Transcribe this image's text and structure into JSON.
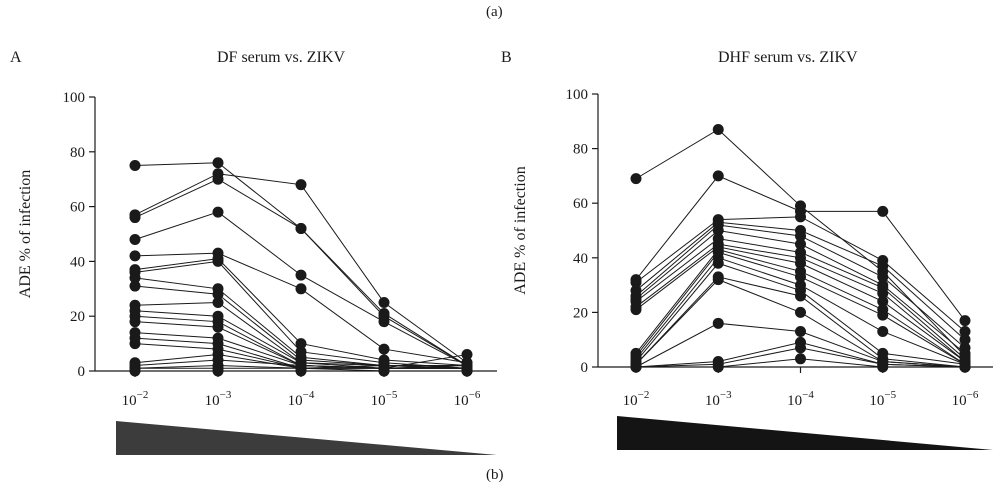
{
  "figure": {
    "top_label": "(a)",
    "bottom_label": "(b)"
  },
  "chart_data": [
    {
      "type": "line",
      "panel": "A",
      "title": "DF serum vs. ZIKV",
      "ylabel": "ADE % of infection",
      "ylim": [
        0,
        100
      ],
      "yticks": [
        0,
        20,
        40,
        60,
        80,
        100
      ],
      "categories": [
        "10^-2",
        "10^-3",
        "10^-4",
        "10^-5",
        "10^-6"
      ],
      "wedge_color": "#3c3c3c",
      "series": [
        {
          "values": [
            75,
            76,
            52,
            20,
            2
          ]
        },
        {
          "values": [
            57,
            72,
            68,
            25,
            3
          ]
        },
        {
          "values": [
            56,
            70,
            52,
            21,
            2
          ]
        },
        {
          "values": [
            48,
            58,
            35,
            18,
            2
          ]
        },
        {
          "values": [
            42,
            43,
            30,
            8,
            3
          ]
        },
        {
          "values": [
            37,
            41,
            10,
            4,
            2
          ]
        },
        {
          "values": [
            36,
            40,
            7,
            3,
            1
          ]
        },
        {
          "values": [
            34,
            30,
            5,
            2,
            1
          ]
        },
        {
          "values": [
            31,
            28,
            4,
            2,
            1
          ]
        },
        {
          "values": [
            24,
            25,
            3,
            2,
            2
          ]
        },
        {
          "values": [
            22,
            20,
            3,
            1,
            1
          ]
        },
        {
          "values": [
            20,
            18,
            2,
            1,
            1
          ]
        },
        {
          "values": [
            18,
            16,
            2,
            1,
            1
          ]
        },
        {
          "values": [
            14,
            12,
            2,
            1,
            6
          ]
        },
        {
          "values": [
            12,
            10,
            1,
            1,
            2
          ]
        },
        {
          "values": [
            10,
            8,
            1,
            1,
            1
          ]
        },
        {
          "values": [
            3,
            6,
            1,
            2,
            1
          ]
        },
        {
          "values": [
            2,
            4,
            2,
            1,
            1
          ]
        },
        {
          "values": [
            1,
            2,
            1,
            1,
            1
          ]
        },
        {
          "values": [
            1,
            1,
            1,
            0,
            0
          ]
        },
        {
          "values": [
            0,
            0,
            0,
            0,
            0
          ]
        }
      ]
    },
    {
      "type": "line",
      "panel": "B",
      "title": "DHF serum vs. ZIKV",
      "ylabel": "ADE % of infection",
      "ylim": [
        0,
        100
      ],
      "yticks": [
        0,
        20,
        40,
        60,
        80,
        100
      ],
      "categories": [
        "10^-2",
        "10^-3",
        "10^-4",
        "10^-5",
        "10^-6"
      ],
      "wedge_color": "#141414",
      "series": [
        {
          "values": [
            69,
            87,
            59,
            35,
            4
          ]
        },
        {
          "values": [
            32,
            70,
            57,
            57,
            17
          ]
        },
        {
          "values": [
            31,
            54,
            55,
            39,
            13
          ]
        },
        {
          "values": [
            28,
            53,
            50,
            37,
            10
          ]
        },
        {
          "values": [
            26,
            52,
            48,
            33,
            7
          ]
        },
        {
          "values": [
            25,
            50,
            45,
            30,
            5
          ]
        },
        {
          "values": [
            24,
            47,
            42,
            29,
            3
          ]
        },
        {
          "values": [
            22,
            45,
            40,
            27,
            2
          ]
        },
        {
          "values": [
            21,
            44,
            38,
            24,
            2
          ]
        },
        {
          "values": [
            5,
            43,
            35,
            21,
            1
          ]
        },
        {
          "values": [
            4,
            42,
            33,
            19,
            1
          ]
        },
        {
          "values": [
            3,
            40,
            30,
            13,
            1
          ]
        },
        {
          "values": [
            2,
            38,
            28,
            5,
            1
          ]
        },
        {
          "values": [
            1,
            33,
            26,
            3,
            0
          ]
        },
        {
          "values": [
            1,
            32,
            20,
            2,
            0
          ]
        },
        {
          "values": [
            0,
            16,
            13,
            2,
            0
          ]
        },
        {
          "values": [
            0,
            2,
            9,
            1,
            0
          ]
        },
        {
          "values": [
            0,
            1,
            7,
            1,
            0
          ]
        },
        {
          "values": [
            0,
            0,
            3,
            0,
            0
          ]
        }
      ]
    }
  ]
}
